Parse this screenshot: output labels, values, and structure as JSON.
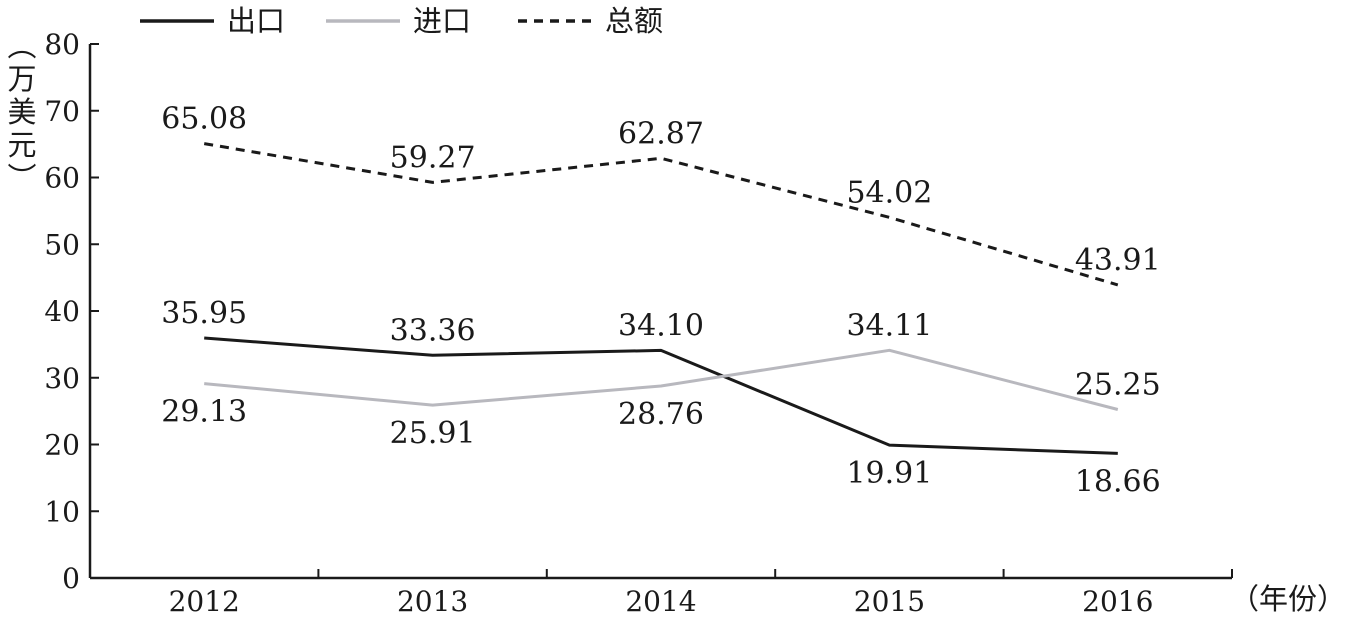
{
  "chart_data": {
    "type": "line",
    "categories": [
      "2012",
      "2013",
      "2014",
      "2015",
      "2016"
    ],
    "ylabel": "（万美元）",
    "xlabel": "（年份）",
    "ylim": [
      0,
      80
    ],
    "yticks": [
      0,
      10,
      20,
      30,
      40,
      50,
      60,
      70,
      80
    ],
    "legend_position": "top-left",
    "grid": false,
    "series": [
      {
        "name": "出口",
        "values": [
          35.95,
          33.36,
          34.1,
          19.91,
          18.66
        ],
        "labels": [
          "35.95",
          "33.36",
          "34.10",
          "19.91",
          "18.66"
        ],
        "label_side": [
          "above",
          "above",
          "above",
          "below",
          "below"
        ],
        "color": "#1a1a1a",
        "style": "solid"
      },
      {
        "name": "进口",
        "values": [
          29.13,
          25.91,
          28.76,
          34.11,
          25.25
        ],
        "labels": [
          "29.13",
          "25.91",
          "28.76",
          "34.11",
          "25.25"
        ],
        "label_side": [
          "below",
          "below",
          "below",
          "above",
          "above"
        ],
        "color": "#b8b8be",
        "style": "solid"
      },
      {
        "name": "总额",
        "values": [
          65.08,
          59.27,
          62.87,
          54.02,
          43.91
        ],
        "labels": [
          "65.08",
          "59.27",
          "62.87",
          "54.02",
          "43.91"
        ],
        "label_side": [
          "above",
          "above",
          "above",
          "above",
          "above"
        ],
        "color": "#1a1a1a",
        "style": "dashed"
      }
    ]
  }
}
